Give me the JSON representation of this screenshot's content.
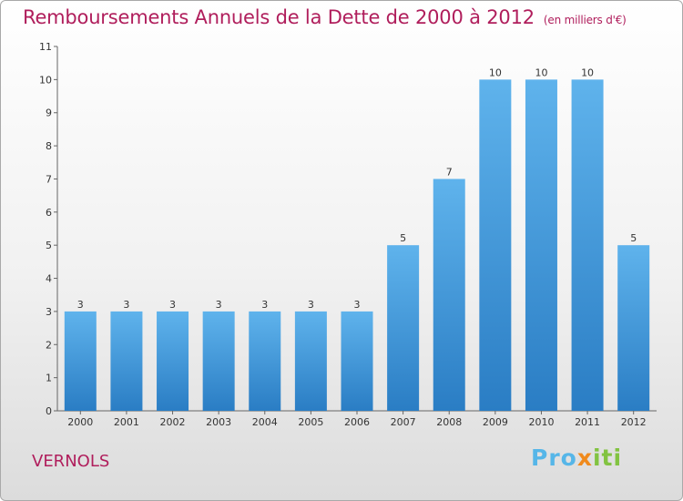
{
  "chart_data": {
    "type": "bar",
    "title": "Remboursements Annuels de la Dette de 2000 à 2012",
    "subtitle": "(en milliers d'€)",
    "categories": [
      "2000",
      "2001",
      "2002",
      "2003",
      "2004",
      "2005",
      "2006",
      "2007",
      "2008",
      "2009",
      "2010",
      "2011",
      "2012"
    ],
    "values": [
      3,
      3,
      3,
      3,
      3,
      3,
      3,
      5,
      7,
      10,
      10,
      10,
      5
    ],
    "ylim": [
      0,
      11
    ],
    "yticks": [
      "0",
      "1",
      "2",
      "3",
      "4",
      "5",
      "6",
      "7",
      "8",
      "9",
      "10",
      "11"
    ],
    "grid": false,
    "bar_color": "#4a9fe0"
  },
  "commune": "VERNOLS",
  "logo": {
    "part1": "Pro",
    "part2": "x",
    "part3": "iti"
  }
}
